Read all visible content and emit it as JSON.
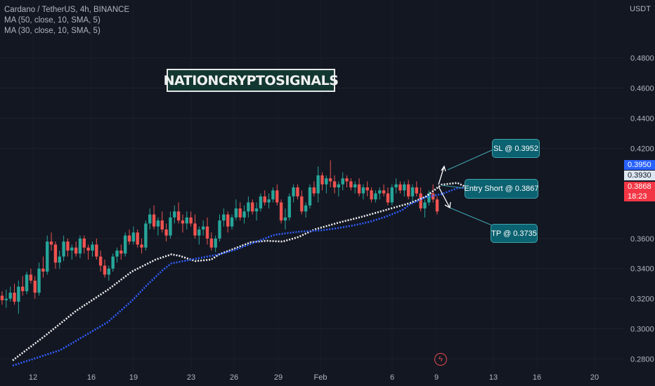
{
  "legend": {
    "symbol": "Cardano / TetherUS, 4h, BINANCE",
    "ma1": "MA (50, close, 10, SMA, 5)",
    "ma2": "MA (30, close, 10, SMA, 5)"
  },
  "currency": "USDT",
  "watermark": "NATIONCRYPTOSIGNALS",
  "price_tags": {
    "blue_value": "0.3950",
    "light_value": "0.3930",
    "red_value": "0.3868",
    "countdown": "18:23"
  },
  "annotations": {
    "sl": "SL @ 0.3952",
    "entry": "Entry Short @ 0.3867",
    "tp": "TP @ 0.3735"
  },
  "colors": {
    "background": "#131722",
    "up_candle": "#26a69a",
    "down_candle": "#ef5350",
    "ma_white": "#ffffff",
    "ma_blue": "#2962ff",
    "callout": "#0b6270"
  },
  "chart_data": {
    "type": "candlestick",
    "y_axis": {
      "ticks": [
        "0.4800",
        "0.4600",
        "0.4400",
        "0.4200",
        "0.3600",
        "0.3400",
        "0.3200",
        "0.3000",
        "0.2800"
      ],
      "ylim": [
        0.2755,
        0.4985
      ],
      "unit": "USDT"
    },
    "x_axis": {
      "ticks": [
        "12",
        "16",
        "19",
        "23",
        "26",
        "29",
        "Feb",
        "6",
        "9",
        "13",
        "16",
        "20"
      ]
    },
    "series": [
      {
        "name": "MA (50, close, 10, SMA, 5)",
        "color": "white",
        "points": [
          [
            0,
            0.279
          ],
          [
            4,
            0.295
          ],
          [
            8,
            0.312
          ],
          [
            12,
            0.326
          ],
          [
            15,
            0.338
          ],
          [
            18,
            0.346
          ],
          [
            20,
            0.3495
          ],
          [
            21,
            0.3485
          ],
          [
            23,
            0.345
          ],
          [
            25,
            0.346
          ],
          [
            26,
            0.3495
          ],
          [
            28,
            0.3535
          ],
          [
            30,
            0.3575
          ],
          [
            32,
            0.3585
          ],
          [
            34,
            0.358
          ],
          [
            36,
            0.361
          ],
          [
            38,
            0.366
          ],
          [
            41,
            0.3705
          ],
          [
            44,
            0.3745
          ],
          [
            46,
            0.3775
          ],
          [
            48,
            0.3805
          ],
          [
            50,
            0.3835
          ],
          [
            52,
            0.3878
          ],
          [
            54,
            0.3958
          ],
          [
            56,
            0.397
          ],
          [
            58,
            0.392
          ]
        ]
      },
      {
        "name": "MA (30, close, 10, SMA, 5)",
        "color": "blue",
        "points": [
          [
            0,
            0.2755
          ],
          [
            6,
            0.2858
          ],
          [
            12,
            0.3045
          ],
          [
            15,
            0.3185
          ],
          [
            17,
            0.3295
          ],
          [
            19,
            0.3395
          ],
          [
            20,
            0.3435
          ],
          [
            22,
            0.3455
          ],
          [
            24,
            0.3475
          ],
          [
            26,
            0.3495
          ],
          [
            28,
            0.3525
          ],
          [
            30,
            0.3565
          ],
          [
            33,
            0.3625
          ],
          [
            36,
            0.3645
          ],
          [
            39,
            0.3655
          ],
          [
            41,
            0.367
          ],
          [
            43,
            0.3688
          ],
          [
            45,
            0.3712
          ],
          [
            47,
            0.3745
          ],
          [
            49,
            0.3788
          ],
          [
            50,
            0.3825
          ],
          [
            52,
            0.3875
          ],
          [
            54,
            0.3895
          ],
          [
            56,
            0.3935
          ],
          [
            58,
            0.394
          ]
        ]
      }
    ],
    "candles": [
      [
        0.322,
        0.325,
        0.316,
        0.319
      ],
      [
        0.319,
        0.326,
        0.314,
        0.32
      ],
      [
        0.32,
        0.328,
        0.318,
        0.324
      ],
      [
        0.324,
        0.33,
        0.316,
        0.318
      ],
      [
        0.318,
        0.332,
        0.31,
        0.328
      ],
      [
        0.328,
        0.335,
        0.322,
        0.325
      ],
      [
        0.325,
        0.338,
        0.323,
        0.336
      ],
      [
        0.336,
        0.34,
        0.33,
        0.332
      ],
      [
        0.332,
        0.335,
        0.32,
        0.324
      ],
      [
        0.324,
        0.344,
        0.322,
        0.34
      ],
      [
        0.34,
        0.348,
        0.334,
        0.338
      ],
      [
        0.338,
        0.362,
        0.336,
        0.358
      ],
      [
        0.358,
        0.364,
        0.352,
        0.356
      ],
      [
        0.356,
        0.358,
        0.34,
        0.344
      ],
      [
        0.344,
        0.352,
        0.34,
        0.348
      ],
      [
        0.348,
        0.362,
        0.345,
        0.358
      ],
      [
        0.358,
        0.36,
        0.348,
        0.352
      ],
      [
        0.352,
        0.356,
        0.346,
        0.354
      ],
      [
        0.354,
        0.358,
        0.348,
        0.35
      ],
      [
        0.35,
        0.362,
        0.347,
        0.36
      ],
      [
        0.36,
        0.362,
        0.35,
        0.354
      ],
      [
        0.354,
        0.356,
        0.346,
        0.352
      ],
      [
        0.352,
        0.358,
        0.348,
        0.356
      ],
      [
        0.356,
        0.36,
        0.346,
        0.348
      ],
      [
        0.348,
        0.352,
        0.338,
        0.342
      ],
      [
        0.342,
        0.346,
        0.334,
        0.336
      ],
      [
        0.336,
        0.342,
        0.332,
        0.34
      ],
      [
        0.34,
        0.35,
        0.338,
        0.348
      ],
      [
        0.348,
        0.354,
        0.344,
        0.352
      ],
      [
        0.352,
        0.356,
        0.346,
        0.35
      ],
      [
        0.35,
        0.364,
        0.348,
        0.362
      ],
      [
        0.362,
        0.366,
        0.356,
        0.358
      ],
      [
        0.358,
        0.368,
        0.356,
        0.364
      ],
      [
        0.364,
        0.366,
        0.354,
        0.356
      ],
      [
        0.356,
        0.36,
        0.35,
        0.354
      ],
      [
        0.354,
        0.372,
        0.352,
        0.37
      ],
      [
        0.37,
        0.38,
        0.366,
        0.376
      ],
      [
        0.376,
        0.382,
        0.366,
        0.368
      ],
      [
        0.368,
        0.374,
        0.362,
        0.372
      ],
      [
        0.372,
        0.378,
        0.364,
        0.366
      ],
      [
        0.366,
        0.37,
        0.358,
        0.362
      ],
      [
        0.362,
        0.378,
        0.36,
        0.374
      ],
      [
        0.374,
        0.382,
        0.37,
        0.378
      ],
      [
        0.378,
        0.384,
        0.37,
        0.372
      ],
      [
        0.372,
        0.376,
        0.364,
        0.37
      ],
      [
        0.37,
        0.378,
        0.366,
        0.374
      ],
      [
        0.374,
        0.378,
        0.368,
        0.37
      ],
      [
        0.37,
        0.376,
        0.36,
        0.362
      ],
      [
        0.362,
        0.368,
        0.356,
        0.366
      ],
      [
        0.366,
        0.372,
        0.362,
        0.368
      ],
      [
        0.368,
        0.374,
        0.356,
        0.36
      ],
      [
        0.36,
        0.364,
        0.352,
        0.354
      ],
      [
        0.354,
        0.362,
        0.351,
        0.36
      ],
      [
        0.36,
        0.376,
        0.358,
        0.372
      ],
      [
        0.372,
        0.38,
        0.368,
        0.376
      ],
      [
        0.376,
        0.378,
        0.364,
        0.368
      ],
      [
        0.368,
        0.376,
        0.366,
        0.374
      ],
      [
        0.374,
        0.386,
        0.372,
        0.38
      ],
      [
        0.38,
        0.384,
        0.372,
        0.374
      ],
      [
        0.374,
        0.382,
        0.37,
        0.378
      ],
      [
        0.378,
        0.388,
        0.374,
        0.384
      ],
      [
        0.384,
        0.386,
        0.376,
        0.378
      ],
      [
        0.378,
        0.384,
        0.372,
        0.38
      ],
      [
        0.38,
        0.39,
        0.378,
        0.388
      ],
      [
        0.388,
        0.392,
        0.382,
        0.384
      ],
      [
        0.384,
        0.39,
        0.38,
        0.386
      ],
      [
        0.386,
        0.394,
        0.384,
        0.392
      ],
      [
        0.392,
        0.396,
        0.382,
        0.384
      ],
      [
        0.384,
        0.386,
        0.37,
        0.372
      ],
      [
        0.372,
        0.38,
        0.366,
        0.374
      ],
      [
        0.374,
        0.39,
        0.372,
        0.388
      ],
      [
        0.388,
        0.396,
        0.384,
        0.394
      ],
      [
        0.394,
        0.396,
        0.386,
        0.388
      ],
      [
        0.388,
        0.392,
        0.376,
        0.378
      ],
      [
        0.378,
        0.384,
        0.374,
        0.382
      ],
      [
        0.382,
        0.396,
        0.38,
        0.394
      ],
      [
        0.394,
        0.398,
        0.388,
        0.39
      ],
      [
        0.39,
        0.408,
        0.384,
        0.402
      ],
      [
        0.402,
        0.404,
        0.392,
        0.396
      ],
      [
        0.396,
        0.402,
        0.39,
        0.4
      ],
      [
        0.4,
        0.412,
        0.394,
        0.398
      ],
      [
        0.398,
        0.402,
        0.39,
        0.394
      ],
      [
        0.394,
        0.398,
        0.388,
        0.396
      ],
      [
        0.396,
        0.404,
        0.392,
        0.4
      ],
      [
        0.4,
        0.402,
        0.394,
        0.398
      ],
      [
        0.398,
        0.4,
        0.392,
        0.394
      ],
      [
        0.394,
        0.398,
        0.39,
        0.396
      ],
      [
        0.396,
        0.4,
        0.388,
        0.39
      ],
      [
        0.39,
        0.396,
        0.386,
        0.394
      ],
      [
        0.394,
        0.398,
        0.388,
        0.392
      ],
      [
        0.392,
        0.394,
        0.384,
        0.386
      ],
      [
        0.386,
        0.392,
        0.384,
        0.39
      ],
      [
        0.39,
        0.394,
        0.386,
        0.392
      ],
      [
        0.392,
        0.396,
        0.388,
        0.39
      ],
      [
        0.39,
        0.394,
        0.382,
        0.384
      ],
      [
        0.384,
        0.396,
        0.382,
        0.394
      ],
      [
        0.394,
        0.4,
        0.39,
        0.396
      ],
      [
        0.396,
        0.398,
        0.39,
        0.392
      ],
      [
        0.392,
        0.398,
        0.388,
        0.396
      ],
      [
        0.396,
        0.399,
        0.386,
        0.388
      ],
      [
        0.388,
        0.396,
        0.384,
        0.394
      ],
      [
        0.394,
        0.398,
        0.388,
        0.39
      ],
      [
        0.39,
        0.394,
        0.378,
        0.38
      ],
      [
        0.38,
        0.386,
        0.374,
        0.384
      ],
      [
        0.384,
        0.392,
        0.382,
        0.39
      ],
      [
        0.39,
        0.396,
        0.384,
        0.386
      ],
      [
        0.386,
        0.388,
        0.376,
        0.378
      ]
    ]
  }
}
